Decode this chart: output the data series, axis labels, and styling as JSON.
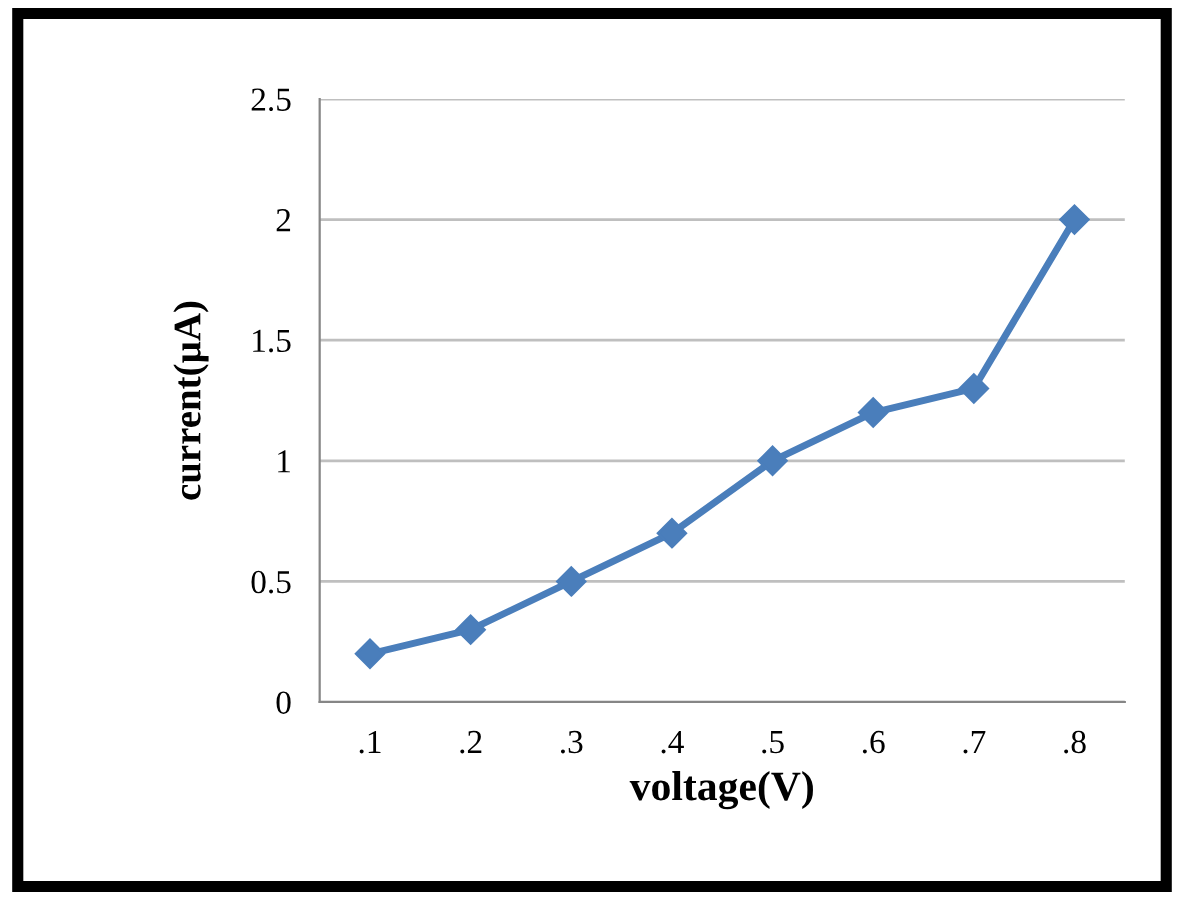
{
  "chart_data": {
    "type": "line",
    "xlabel": "voltage(V)",
    "ylabel": "current(µA)",
    "categories": [
      ".1",
      ".2",
      ".3",
      ".4",
      ".5",
      ".6",
      ".7",
      ".8"
    ],
    "series": [
      {
        "color": "#4a7ebb",
        "values": [
          0.2,
          0.3,
          0.5,
          0.7,
          1,
          1.2,
          1.3,
          2
        ]
      }
    ],
    "ylim": [
      0,
      2.5
    ],
    "yticks": [
      0,
      0.5,
      1,
      1.5,
      2,
      2.5
    ],
    "grid": "y",
    "marker": "diamond",
    "line_style": "solid"
  }
}
